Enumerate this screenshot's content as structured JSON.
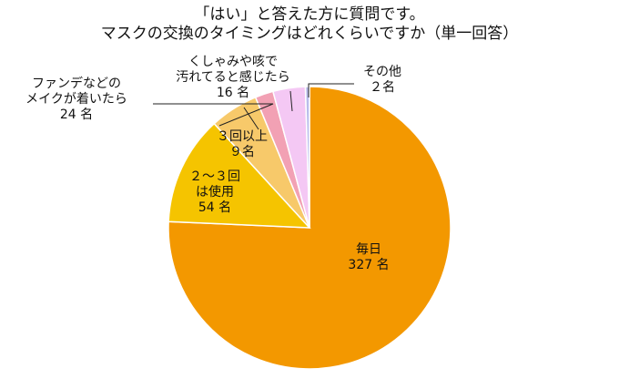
{
  "title_lines": [
    "「はい」と答えた方に質問です。",
    "マスクの交換のタイミングはどれくらいですか（単一回答）"
  ],
  "chart_data": {
    "type": "pie",
    "title": "「はい」と答えた方に質問です。マスクの交換のタイミングはどれくらいですか（単一回答）",
    "unit": "名",
    "slices": [
      {
        "key": "daily",
        "label_lines": [
          "毎日",
          "327 名"
        ],
        "value": 327,
        "color": "#F39800"
      },
      {
        "key": "2to3",
        "label_lines": [
          "２～３回",
          "は使用",
          "54 名"
        ],
        "value": 54,
        "color": "#F5C400"
      },
      {
        "key": "foundation",
        "label_lines": [
          "ファンデなどの",
          "メイクが着いたら",
          "24 名"
        ],
        "value": 24,
        "color": "#F7C96A"
      },
      {
        "key": "3plus",
        "label_lines": [
          "３回以上",
          "９名"
        ],
        "value": 9,
        "color": "#F2A1B4"
      },
      {
        "key": "dirty",
        "label_lines": [
          "くしゃみや咳で",
          "汚れてると感じたら",
          "16 名"
        ],
        "value": 16,
        "color": "#F4C8F4"
      },
      {
        "key": "other",
        "label_lines": [
          "その他",
          "２名"
        ],
        "value": 2,
        "color": "#B9BCEB"
      }
    ]
  }
}
